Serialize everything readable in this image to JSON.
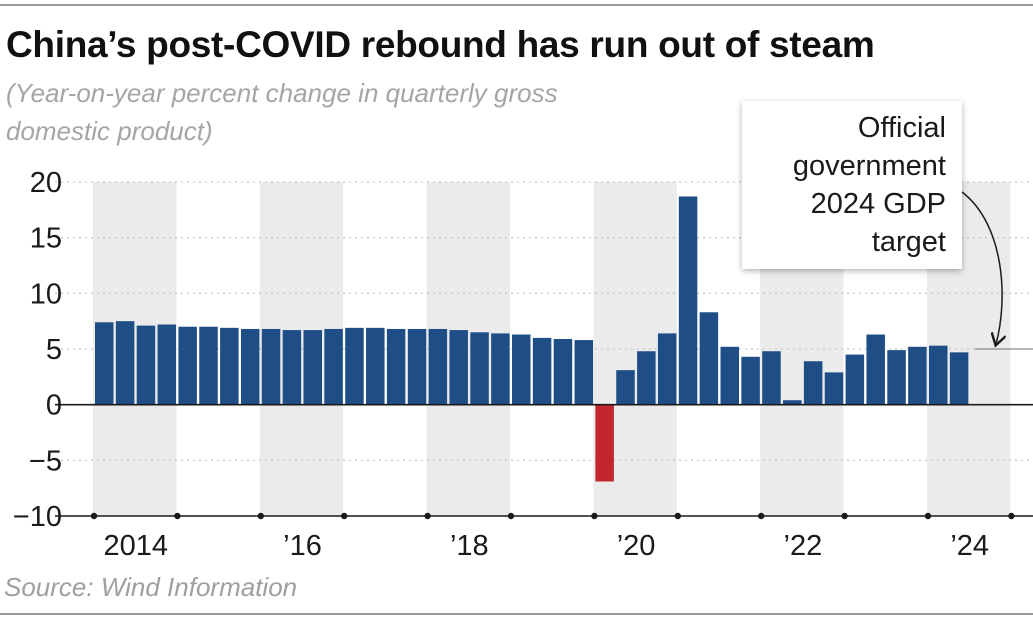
{
  "header": {
    "title": "China’s post-COVID rebound has run out of steam",
    "subtitle": "(Year-on-year percent change in quarterly gross domestic product)"
  },
  "annotation": {
    "text": "Official government 2024 GDP target",
    "value": 5
  },
  "footer": {
    "source": "Source: Wind Information"
  },
  "colors": {
    "bar": "#1f4e86",
    "negative_bar": "#c1272d",
    "band": "#ebebeb",
    "grid": "#c8c8c8"
  },
  "chart_data": {
    "type": "bar",
    "ylim": [
      -10,
      20
    ],
    "yticks": [
      20,
      15,
      10,
      5,
      0,
      -5,
      -10
    ],
    "ytick_labels": [
      "20",
      "15",
      "10",
      "5",
      "0",
      "−5",
      "−10"
    ],
    "grid": "horizontal dotted",
    "xlabels": [
      {
        "year": 2014,
        "label": "2014"
      },
      {
        "year": 2016,
        "label": "’16"
      },
      {
        "year": 2018,
        "label": "’18"
      },
      {
        "year": 2020,
        "label": "’20"
      },
      {
        "year": 2022,
        "label": "’22"
      },
      {
        "year": 2024,
        "label": "’24"
      }
    ],
    "categories": [
      "2014 Q1",
      "2014 Q2",
      "2014 Q3",
      "2014 Q4",
      "2015 Q1",
      "2015 Q2",
      "2015 Q3",
      "2015 Q4",
      "2016 Q1",
      "2016 Q2",
      "2016 Q3",
      "2016 Q4",
      "2017 Q1",
      "2017 Q2",
      "2017 Q3",
      "2017 Q4",
      "2018 Q1",
      "2018 Q2",
      "2018 Q3",
      "2018 Q4",
      "2019 Q1",
      "2019 Q2",
      "2019 Q3",
      "2019 Q4",
      "2020 Q1",
      "2020 Q2",
      "2020 Q3",
      "2020 Q4",
      "2021 Q1",
      "2021 Q2",
      "2021 Q3",
      "2021 Q4",
      "2022 Q1",
      "2022 Q2",
      "2022 Q3",
      "2022 Q4",
      "2023 Q1",
      "2023 Q2",
      "2023 Q3",
      "2023 Q4",
      "2024 Q1",
      "2024 Q2"
    ],
    "values": [
      7.4,
      7.5,
      7.1,
      7.2,
      7.0,
      7.0,
      6.9,
      6.8,
      6.8,
      6.7,
      6.7,
      6.8,
      6.9,
      6.9,
      6.8,
      6.8,
      6.8,
      6.7,
      6.5,
      6.4,
      6.3,
      6.0,
      5.9,
      5.8,
      -6.9,
      3.1,
      4.8,
      6.4,
      18.7,
      8.3,
      5.2,
      4.3,
      4.8,
      0.4,
      3.9,
      2.9,
      4.5,
      6.3,
      4.9,
      5.2,
      5.3,
      4.7
    ]
  }
}
